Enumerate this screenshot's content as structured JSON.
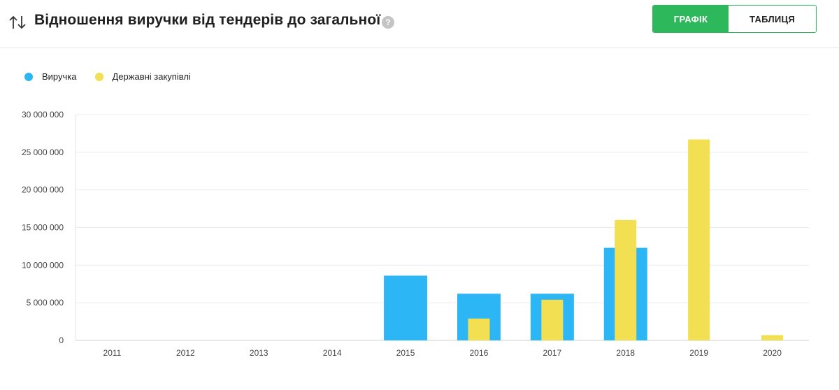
{
  "header": {
    "title": "Відношення виручки від тендерів до загальної",
    "help": "?",
    "tabs": [
      {
        "label": "ГРАФІК",
        "active": true
      },
      {
        "label": "ТАБЛИЦЯ",
        "active": false
      }
    ]
  },
  "colors": {
    "accent": "#2eb85c",
    "revenue": "#2db6f5",
    "procurement": "#f2df52"
  },
  "icons": {
    "sort": "sort-arrows-icon",
    "help": "question-circle-icon"
  },
  "chart_data": {
    "type": "bar",
    "categories": [
      "2011",
      "2012",
      "2013",
      "2014",
      "2015",
      "2016",
      "2017",
      "2018",
      "2019",
      "2020"
    ],
    "series": [
      {
        "name": "Виручка",
        "values": [
          0,
          0,
          0,
          0,
          8600000,
          6200000,
          6200000,
          12300000,
          0,
          0
        ]
      },
      {
        "name": "Державні закупівлі",
        "values": [
          0,
          0,
          0,
          0,
          0,
          2900000,
          5400000,
          16000000,
          26700000,
          700000
        ]
      }
    ],
    "yticks": [
      "0",
      "5 000 000",
      "10 000 000",
      "15 000 000",
      "20 000 000",
      "25 000 000",
      "30 000 000"
    ],
    "ylim": [
      0,
      30000000
    ],
    "grid": true,
    "legend_position": "top-left"
  }
}
